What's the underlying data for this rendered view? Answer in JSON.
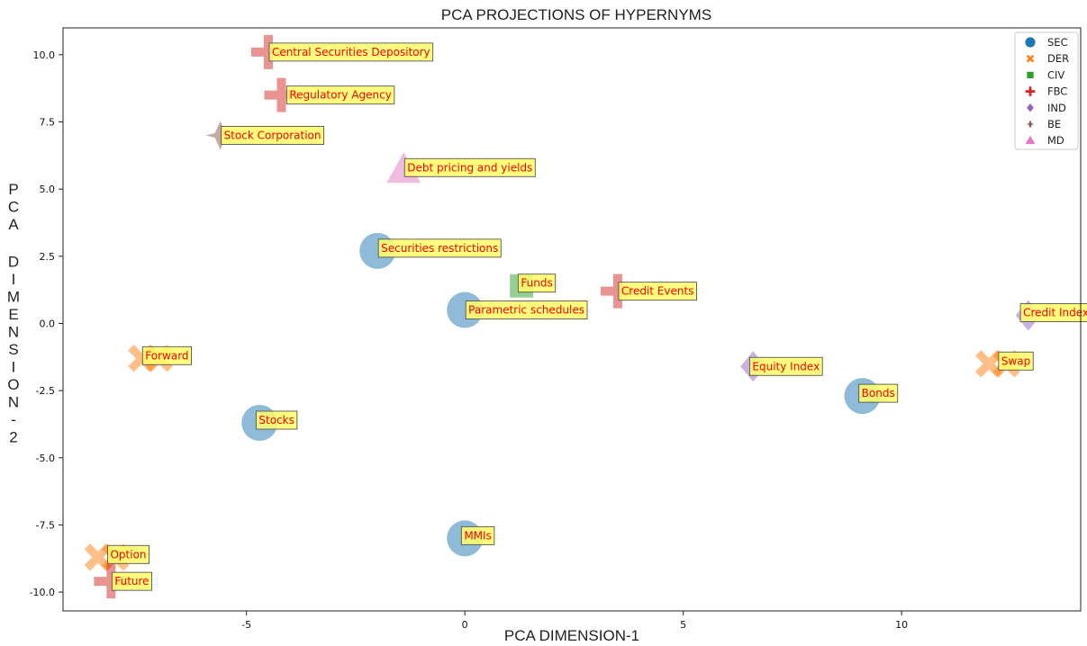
{
  "chart_data": {
    "type": "scatter",
    "title": "PCA PROJECTIONS OF HYPERNYMS",
    "xlabel": "PCA DIMENSION-1",
    "ylabel": "PCA DIMENSION-2",
    "xlim": [
      -9.2,
      14.1
    ],
    "ylim": [
      -10.7,
      11.0
    ],
    "x_ticks": [
      "-5",
      "0",
      "5",
      "10"
    ],
    "x_tick_values": [
      -5,
      0,
      5,
      10
    ],
    "y_ticks": [
      "10.0",
      "7.5",
      "5.0",
      "2.5",
      "0.0",
      "-2.5",
      "-5.0",
      "-7.5",
      "-10.0"
    ],
    "y_tick_values": [
      10,
      7.5,
      5,
      2.5,
      0,
      -2.5,
      -5,
      -7.5,
      -10
    ],
    "grid": false,
    "legend_position": "top-right",
    "categories": [
      {
        "name": "SEC",
        "marker": "circle",
        "color": "#1f77b4"
      },
      {
        "name": "DER",
        "marker": "x",
        "color": "#ff7f0e"
      },
      {
        "name": "CIV",
        "marker": "square",
        "color": "#2ca02c"
      },
      {
        "name": "FBC",
        "marker": "plus",
        "color": "#d62728"
      },
      {
        "name": "IND",
        "marker": "diamond",
        "color": "#9467bd"
      },
      {
        "name": "BE",
        "marker": "thin-diamond",
        "color": "#8c564b"
      },
      {
        "name": "MD",
        "marker": "triangle",
        "color": "#e377c2"
      }
    ],
    "points": [
      {
        "label": "Central Securities Depository",
        "category": "FBC",
        "x": -4.5,
        "y": 10.1
      },
      {
        "label": "Regulatory Agency",
        "category": "FBC",
        "x": -4.2,
        "y": 8.5
      },
      {
        "label": "Stock Corporation",
        "category": "BE",
        "x": -5.6,
        "y": 7.0
      },
      {
        "label": "Debt pricing and yields",
        "category": "MD",
        "x": -1.4,
        "y": 5.7
      },
      {
        "label": "Securities restrictions",
        "category": "SEC",
        "x": -2.0,
        "y": 2.7
      },
      {
        "label": "Funds",
        "category": "CIV",
        "x": 1.3,
        "y": 1.4
      },
      {
        "label": "Credit Events",
        "category": "FBC",
        "x": 3.5,
        "y": 1.2
      },
      {
        "label": "Parametric schedules",
        "category": "SEC",
        "x": 0.0,
        "y": 0.5
      },
      {
        "label": "Credit Index",
        "category": "IND",
        "x": 12.9,
        "y": 0.3
      },
      {
        "label": "Forward",
        "category": "DER",
        "x": -7.4,
        "y": -1.3
      },
      {
        "label": "Forward",
        "category": "DER",
        "x": -7.0,
        "y": -1.3
      },
      {
        "label": "Equity Index",
        "category": "IND",
        "x": 6.6,
        "y": -1.6
      },
      {
        "label": "Swap",
        "category": "DER",
        "x": 12.0,
        "y": -1.5
      },
      {
        "label": "Swap",
        "category": "DER",
        "x": 12.4,
        "y": -1.5
      },
      {
        "label": "Bonds",
        "category": "SEC",
        "x": 9.1,
        "y": -2.7
      },
      {
        "label": "Stocks",
        "category": "SEC",
        "x": -4.7,
        "y": -3.7
      },
      {
        "label": "MMIs",
        "category": "SEC",
        "x": 0.0,
        "y": -8.0
      },
      {
        "label": "Option",
        "category": "DER",
        "x": -8.4,
        "y": -8.7
      },
      {
        "label": "Option",
        "category": "DER",
        "x": -8.0,
        "y": -8.7
      },
      {
        "label": "Future",
        "category": "FBC",
        "x": -8.1,
        "y": -9.6
      }
    ],
    "annotations": [
      {
        "text": "Central Securities Depository",
        "x": -4.5,
        "y": 10.1
      },
      {
        "text": "Regulatory Agency",
        "x": -4.1,
        "y": 8.5
      },
      {
        "text": "Stock Corporation",
        "x": -5.6,
        "y": 7.0
      },
      {
        "text": "Debt pricing and yields",
        "x": -1.4,
        "y": 5.8
      },
      {
        "text": "Securities restrictions",
        "x": -2.0,
        "y": 2.8
      },
      {
        "text": "Funds",
        "x": 1.2,
        "y": 1.5
      },
      {
        "text": "Credit Events",
        "x": 3.5,
        "y": 1.2
      },
      {
        "text": "Parametric schedules",
        "x": 0.0,
        "y": 0.5
      },
      {
        "text": "Credit Index",
        "x": 12.7,
        "y": 0.4
      },
      {
        "text": "Forward",
        "x": -7.4,
        "y": -1.2
      },
      {
        "text": "Equity Index",
        "x": 6.5,
        "y": -1.6
      },
      {
        "text": "Swap",
        "x": 12.2,
        "y": -1.4
      },
      {
        "text": "Bonds",
        "x": 9.0,
        "y": -2.6
      },
      {
        "text": "Stocks",
        "x": -4.8,
        "y": -3.6
      },
      {
        "text": "MMIs",
        "x": -0.1,
        "y": -7.9
      },
      {
        "text": "Option",
        "x": -8.2,
        "y": -8.6
      },
      {
        "text": "Future",
        "x": -8.1,
        "y": -9.6
      }
    ]
  }
}
